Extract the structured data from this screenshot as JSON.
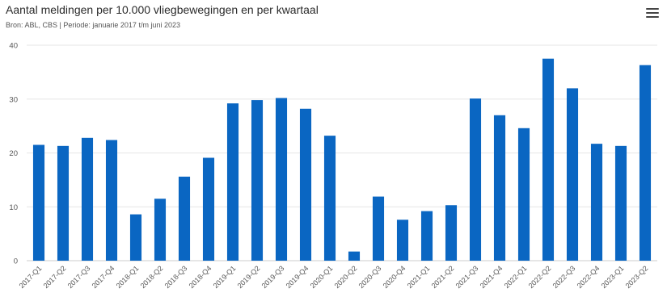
{
  "header": {
    "title": "Aantal meldingen per 10.000 vliegbewegingen en per kwartaal",
    "subtitle": "Bron: ABL, CBS | Periode: januarie 2017 t/m juni 2023",
    "menu_icon": "hamburger-menu-icon"
  },
  "colors": {
    "bar": "#0a66c2",
    "grid": "#e6e6e6"
  },
  "chart_data": {
    "type": "bar",
    "title": "Aantal meldingen per 10.000 vliegbewegingen en per kwartaal",
    "subtitle": "Bron: ABL, CBS | Periode: januarie 2017 t/m juni 2023",
    "xlabel": "",
    "ylabel": "",
    "ylim": [
      0,
      40
    ],
    "yticks": [
      0,
      10,
      20,
      30,
      40
    ],
    "grid": true,
    "legend": "none",
    "categories": [
      "2017-Q1",
      "2017-Q2",
      "2017-Q3",
      "2017-Q4",
      "2018-Q1",
      "2018-Q2",
      "2018-Q3",
      "2018-Q4",
      "2019-Q1",
      "2019-Q2",
      "2019-Q3",
      "2019-Q4",
      "2020-Q1",
      "2020-Q2",
      "2020-Q3",
      "2020-Q4",
      "2021-Q1",
      "2021-Q2",
      "2021-Q3",
      "2021-Q4",
      "2022-Q1",
      "2022-Q2",
      "2022-Q3",
      "2022-Q4",
      "2023-Q1",
      "2023-Q2"
    ],
    "values": [
      21.5,
      21.3,
      22.8,
      22.4,
      8.6,
      11.5,
      15.6,
      19.1,
      29.2,
      29.8,
      30.2,
      28.2,
      23.2,
      1.7,
      11.9,
      7.6,
      9.2,
      10.3,
      30.1,
      27.0,
      24.6,
      37.5,
      32.0,
      21.7,
      21.3,
      36.3
    ]
  }
}
